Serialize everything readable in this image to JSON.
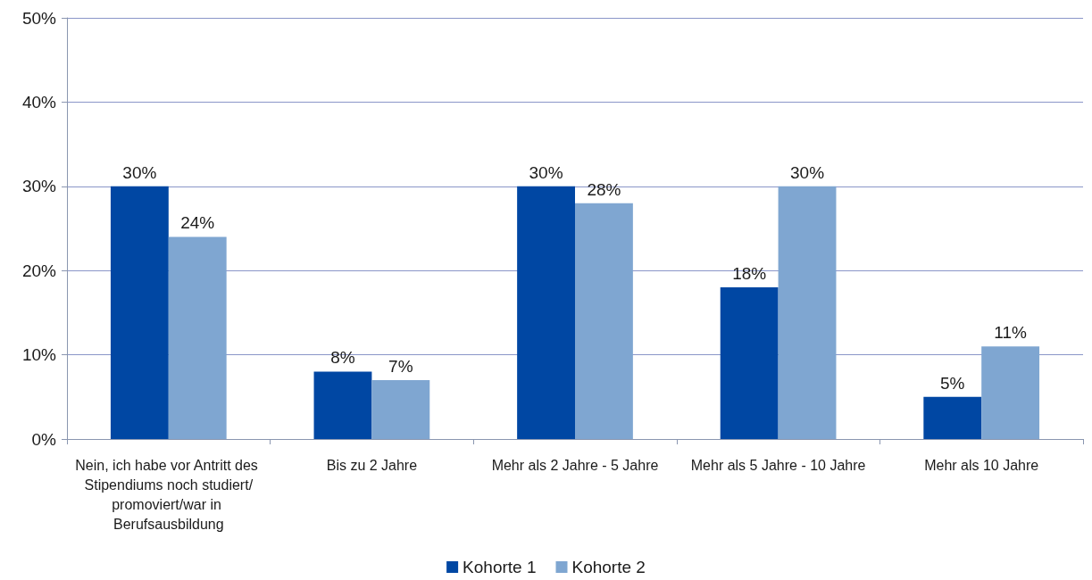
{
  "chart_data": {
    "type": "bar",
    "categories": [
      "Nein, ich habe vor Antritt des Stipendiums noch studiert/promoviert/war in Berufsausbildung",
      "Bis zu 2 Jahre",
      "Mehr als 2 Jahre - 5 Jahre",
      "Mehr als 5 Jahre - 10 Jahre",
      "Mehr als 10 Jahre"
    ],
    "series": [
      {
        "name": "Kohorte 1",
        "color": "#0047a3",
        "values": [
          30,
          8,
          30,
          18,
          5
        ],
        "value_labels": [
          "30%",
          "8%",
          "30%",
          "18%",
          "5%"
        ]
      },
      {
        "name": "Kohorte 2",
        "color": "#7fa6d1",
        "values": [
          24,
          7,
          28,
          30,
          11
        ],
        "value_labels": [
          "24%",
          "7%",
          "28%",
          "30%",
          "11%"
        ]
      }
    ],
    "ylim": [
      0,
      50
    ],
    "yticks": [
      {
        "value": 0,
        "label": "0%"
      },
      {
        "value": 10,
        "label": "10%"
      },
      {
        "value": 20,
        "label": "20%"
      },
      {
        "value": 30,
        "label": "30%"
      },
      {
        "value": 40,
        "label": "40%"
      },
      {
        "value": 50,
        "label": "50%"
      }
    ],
    "grid": "y",
    "legend": "bottom"
  }
}
